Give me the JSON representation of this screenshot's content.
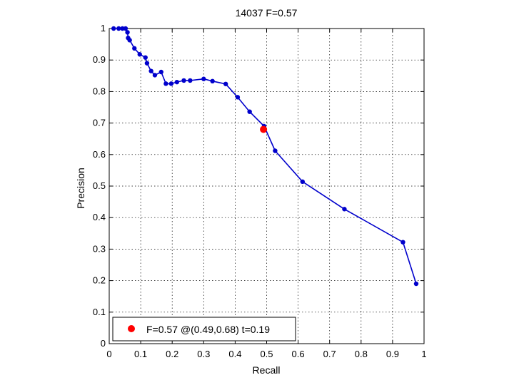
{
  "chart_data": {
    "type": "line",
    "title": "14037 F=0.57",
    "xlabel": "Recall",
    "ylabel": "Precision",
    "xlim": [
      0,
      1
    ],
    "ylim": [
      0,
      1
    ],
    "xticks": [
      "0",
      "0.1",
      "0.2",
      "0.3",
      "0.4",
      "0.5",
      "0.6",
      "0.7",
      "0.8",
      "0.9",
      "1"
    ],
    "yticks": [
      "0",
      "0.1",
      "0.2",
      "0.3",
      "0.4",
      "0.5",
      "0.6",
      "0.7",
      "0.8",
      "0.9",
      "1"
    ],
    "grid": true,
    "legend_position": "bottom-left",
    "series": [
      {
        "color": "#0000cc",
        "points": [
          [
            0.014,
            1.0
          ],
          [
            0.03,
            1.0
          ],
          [
            0.042,
            1.0
          ],
          [
            0.052,
            1.0
          ],
          [
            0.058,
            0.988
          ],
          [
            0.06,
            0.97
          ],
          [
            0.065,
            0.963
          ],
          [
            0.08,
            0.937
          ],
          [
            0.097,
            0.918
          ],
          [
            0.115,
            0.908
          ],
          [
            0.12,
            0.89
          ],
          [
            0.133,
            0.865
          ],
          [
            0.145,
            0.852
          ],
          [
            0.165,
            0.862
          ],
          [
            0.18,
            0.825
          ],
          [
            0.197,
            0.825
          ],
          [
            0.215,
            0.83
          ],
          [
            0.237,
            0.835
          ],
          [
            0.257,
            0.835
          ],
          [
            0.3,
            0.84
          ],
          [
            0.328,
            0.833
          ],
          [
            0.37,
            0.824
          ],
          [
            0.408,
            0.782
          ],
          [
            0.446,
            0.736
          ],
          [
            0.492,
            0.69
          ],
          [
            0.527,
            0.612
          ],
          [
            0.614,
            0.514
          ],
          [
            0.747,
            0.427
          ],
          [
            0.933,
            0.322
          ],
          [
            0.975,
            0.19
          ]
        ]
      }
    ],
    "marker": {
      "x": 0.49,
      "y": 0.68,
      "color": "#ff0000"
    },
    "legend": {
      "text": "F=0.57 @(0.49,0.68) t=0.19"
    }
  }
}
